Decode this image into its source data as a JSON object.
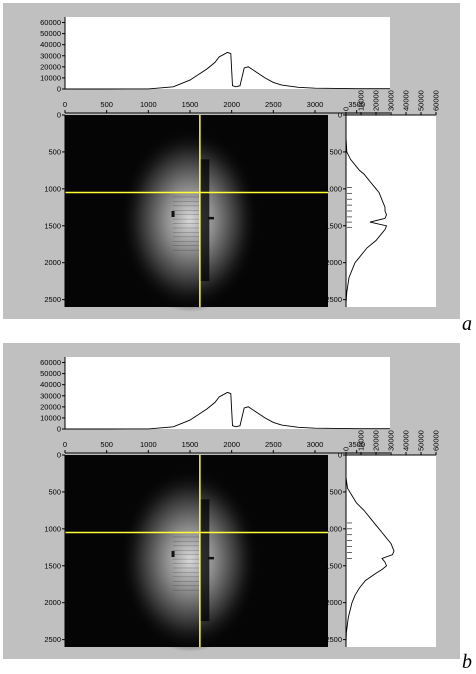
{
  "colors": {
    "panel_bg": "#c0c0c0",
    "plot_bg": "#ffffff",
    "image_bg": "#050505",
    "crosshair": "#ffff33",
    "trace": "#000000"
  },
  "chart_data": [
    {
      "panel_label": "a",
      "type": "line",
      "image_extent": {
        "x": [
          0,
          3900
        ],
        "y": [
          0,
          2600
        ]
      },
      "crosshair": {
        "x": 2000,
        "y": 1050
      },
      "top_profile": {
        "xlim": [
          0,
          3900
        ],
        "ylim": [
          0,
          65000
        ],
        "xticks": [
          0,
          500,
          1000,
          1500,
          2000,
          2500,
          3000,
          3500
        ],
        "yticks": [
          0,
          10000,
          20000,
          30000,
          40000,
          50000,
          60000
        ],
        "x": [
          0,
          500,
          1000,
          1300,
          1500,
          1600,
          1700,
          1800,
          1850,
          1900,
          1950,
          1990,
          2010,
          2050,
          2100,
          2150,
          2200,
          2300,
          2400,
          2500,
          2600,
          2800,
          3000,
          3500,
          3900
        ],
        "y": [
          0,
          0,
          100,
          2000,
          8000,
          13000,
          18000,
          24000,
          29000,
          31000,
          33000,
          32000,
          3000,
          2000,
          3000,
          19000,
          20000,
          15000,
          10000,
          6000,
          3500,
          1500,
          700,
          300,
          300
        ]
      },
      "side_profile": {
        "orientation": "vertical",
        "xlim": [
          0,
          60000
        ],
        "ylim": [
          0,
          2600
        ],
        "xticks": [
          0,
          10000,
          20000,
          30000,
          40000,
          50000,
          60000
        ],
        "yticks": [
          0,
          500,
          1000,
          1500,
          2000,
          2500
        ],
        "y": [
          0,
          300,
          500,
          600,
          700,
          750,
          800,
          850,
          900,
          950,
          1000,
          1050,
          1100,
          1150,
          1200,
          1250,
          1300,
          1350,
          1400,
          1450,
          1500,
          1550,
          1600,
          1650,
          1700,
          1800,
          1900,
          2000,
          2200,
          2400,
          2550
        ],
        "x": [
          0,
          0,
          500,
          3000,
          7000,
          9000,
          12000,
          14000,
          16000,
          18000,
          20000,
          22000,
          23000,
          24000,
          25000,
          26000,
          26000,
          27000,
          26000,
          16000,
          27000,
          26000,
          24000,
          22000,
          20000,
          14000,
          10000,
          6000,
          2000,
          500,
          0
        ]
      },
      "spike_markers": {
        "axis": "side",
        "positions": [
          980,
          1060,
          1140,
          1220,
          1300,
          1380,
          1450,
          1520
        ],
        "length": 4000
      }
    },
    {
      "panel_label": "b",
      "type": "line",
      "image_extent": {
        "x": [
          0,
          3900
        ],
        "y": [
          0,
          2600
        ]
      },
      "crosshair": {
        "x": 2000,
        "y": 1050
      },
      "top_profile": {
        "xlim": [
          0,
          3900
        ],
        "ylim": [
          0,
          65000
        ],
        "xticks": [
          0,
          500,
          1000,
          1500,
          2000,
          2500,
          3000,
          3500
        ],
        "yticks": [
          0,
          10000,
          20000,
          30000,
          40000,
          50000,
          60000
        ],
        "x": [
          0,
          500,
          1000,
          1300,
          1500,
          1600,
          1700,
          1800,
          1850,
          1900,
          1950,
          1990,
          2010,
          2050,
          2100,
          2150,
          2200,
          2300,
          2400,
          2500,
          2600,
          2800,
          3000,
          3500,
          3900
        ],
        "y": [
          0,
          0,
          100,
          2000,
          8000,
          13000,
          18000,
          24000,
          29000,
          31000,
          33000,
          32000,
          3000,
          2000,
          3000,
          19000,
          20000,
          15000,
          10000,
          6000,
          3500,
          1500,
          700,
          300,
          300
        ]
      },
      "side_profile": {
        "orientation": "vertical",
        "xlim": [
          0,
          60000
        ],
        "ylim": [
          0,
          2600
        ],
        "xticks": [
          0,
          10000,
          20000,
          30000,
          40000,
          50000,
          60000
        ],
        "yticks": [
          0,
          500,
          1000,
          1500,
          2000,
          2500
        ],
        "y": [
          0,
          300,
          450,
          550,
          650,
          750,
          850,
          950,
          1050,
          1100,
          1150,
          1200,
          1250,
          1300,
          1350,
          1400,
          1450,
          1500,
          1550,
          1600,
          1700,
          1800,
          1900,
          2000,
          2200,
          2400,
          2550
        ],
        "x": [
          0,
          0,
          1000,
          4000,
          7000,
          12000,
          16000,
          20000,
          24000,
          26000,
          28000,
          30000,
          31000,
          32000,
          31000,
          24000,
          26000,
          27000,
          24000,
          20000,
          13000,
          9000,
          6000,
          4000,
          1500,
          300,
          0
        ]
      },
      "spike_markers": {
        "axis": "side",
        "positions": [
          920,
          1000,
          1080,
          1160,
          1240,
          1320,
          1400
        ],
        "length": 4000
      }
    }
  ]
}
